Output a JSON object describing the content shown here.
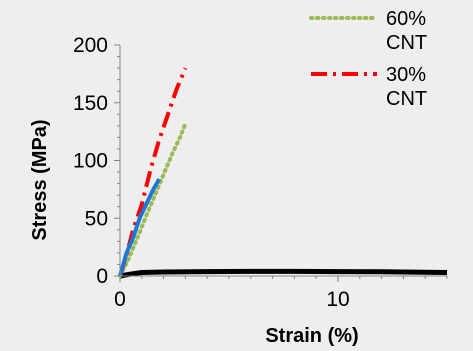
{
  "chart_data": {
    "type": "line",
    "title": "",
    "xlabel": "Strain (%)",
    "ylabel": "Stress (MPa)",
    "xlim": [
      0,
      15
    ],
    "ylim": [
      0,
      200
    ],
    "x_ticks": [
      0,
      10
    ],
    "y_ticks": [
      0,
      50,
      100,
      150,
      200
    ],
    "grid": false,
    "legend_position": "top-right",
    "series": [
      {
        "name": "60% CNT",
        "color": "#9bbb59",
        "style": "dotted",
        "x": [
          0.0,
          0.4,
          0.8,
          1.2,
          1.6,
          2.0,
          2.4,
          2.8,
          3.0
        ],
        "y": [
          0,
          15,
          33,
          52,
          70,
          88,
          106,
          122,
          132
        ]
      },
      {
        "name": "30% CNT",
        "color": "#ff0000",
        "style": "dash-dot",
        "x": [
          0.0,
          0.3,
          0.6,
          1.0,
          1.4,
          1.8,
          2.2,
          2.6,
          3.0
        ],
        "y": [
          0,
          18,
          40,
          62,
          92,
          118,
          140,
          162,
          180
        ]
      },
      {
        "name": "",
        "color": "#1f77d4",
        "style": "solid",
        "x": [
          0.0,
          0.3,
          0.6,
          0.9,
          1.2,
          1.5,
          1.8
        ],
        "y": [
          0,
          20,
          33,
          50,
          62,
          74,
          84
        ]
      },
      {
        "name": "",
        "color": "#000000",
        "style": "solid",
        "x": [
          0.0,
          0.3,
          0.6,
          1.0,
          2.0,
          4.0,
          6.0,
          8.0,
          10.0,
          12.0,
          14.0,
          15.0
        ],
        "y": [
          0,
          1,
          2,
          3,
          3.5,
          3.8,
          4,
          4,
          3.8,
          3.6,
          3.3,
          3
        ]
      }
    ]
  }
}
